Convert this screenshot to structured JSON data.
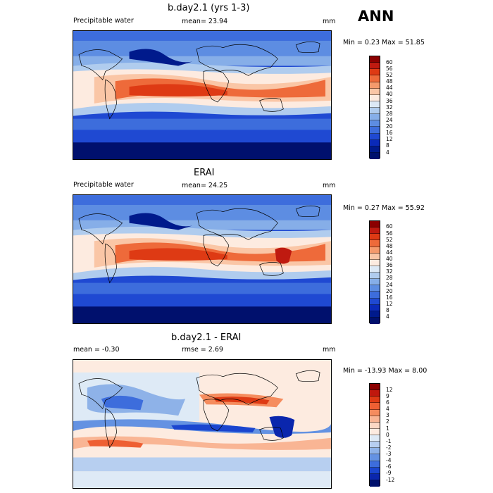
{
  "season": "ANN",
  "units": "mm",
  "panels": [
    {
      "title": "b.day2.1 (yrs 1-3)",
      "variable": "Precipitable water",
      "stat_left": "",
      "stat_center": "mean=  23.94",
      "minmax": "Min =   0.23 Max =  51.85",
      "colorbar_labels": [
        "60",
        "56",
        "52",
        "48",
        "44",
        "40",
        "36",
        "32",
        "28",
        "24",
        "20",
        "16",
        "12",
        "8",
        "4"
      ],
      "colors": [
        "#8b0000",
        "#bf1a10",
        "#de3a14",
        "#ee6a3a",
        "#f59a6c",
        "#fac6a6",
        "#fdebe0",
        "#dde9f6",
        "#b0ccee",
        "#86aee8",
        "#5d8de2",
        "#3d6ddc",
        "#1f49d2",
        "#0a2ab9",
        "#001a8c",
        "#00106d"
      ]
    },
    {
      "title": "ERAI",
      "variable": "Precipitable water",
      "stat_left": "",
      "stat_center": "mean=  24.25",
      "minmax": "Min =   0.27 Max =  55.92",
      "colorbar_labels": [
        "60",
        "56",
        "52",
        "48",
        "44",
        "40",
        "36",
        "32",
        "28",
        "24",
        "20",
        "16",
        "12",
        "8",
        "4"
      ],
      "colors": [
        "#8b0000",
        "#bf1a10",
        "#de3a14",
        "#ee6a3a",
        "#f59a6c",
        "#fac6a6",
        "#fdebe0",
        "#dde9f6",
        "#b0ccee",
        "#86aee8",
        "#5d8de2",
        "#3d6ddc",
        "#1f49d2",
        "#0a2ab9",
        "#001a8c",
        "#00106d"
      ]
    },
    {
      "title": "b.day2.1 - ERAI",
      "variable": "",
      "stat_left": "mean =  -0.30",
      "stat_center": "rmse =   2.69",
      "minmax": "Min = -13.93 Max =   8.00",
      "colorbar_labels": [
        "12",
        "9",
        "6",
        "4",
        "3",
        "2",
        "1",
        "0",
        "-1",
        "-2",
        "-3",
        "-4",
        "-6",
        "-9",
        "-12"
      ],
      "colors": [
        "#8b0000",
        "#c0180d",
        "#de3a14",
        "#ee5f33",
        "#f58c5e",
        "#f9b594",
        "#fcd8c4",
        "#fdebe0",
        "#deeaf6",
        "#b7cff0",
        "#8eb2e8",
        "#6492e2",
        "#3d6ddc",
        "#1a45cf",
        "#0a26ad",
        "#00106d"
      ]
    }
  ]
}
